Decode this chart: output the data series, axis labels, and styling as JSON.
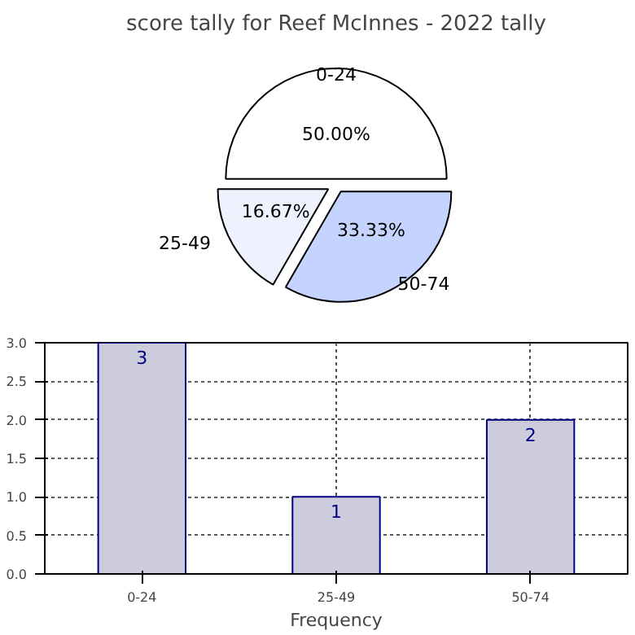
{
  "chart_data": [
    {
      "type": "pie",
      "title": "score tally for Reef McInnes - 2022 tally",
      "categories": [
        "0-24",
        "25-49",
        "50-74"
      ],
      "values": [
        50,
        16.67,
        33.33
      ],
      "value_labels": [
        "50.00%",
        "16.67%",
        "33.33%"
      ],
      "colors": [
        "#ffffff",
        "#eef2ff",
        "#c4d4ff"
      ]
    },
    {
      "type": "bar",
      "categories": [
        "0-24",
        "25-49",
        "50-74"
      ],
      "values": [
        3,
        1,
        2
      ],
      "color": "#ccccdd",
      "xlabel": "Frequency",
      "ylim": [
        0,
        3
      ],
      "yticks": [
        {
          "value": 0,
          "label": "0.0"
        },
        {
          "value": 0.5,
          "label": "0.5"
        },
        {
          "value": 1,
          "label": "1.0"
        },
        {
          "value": 1.5,
          "label": "1.5"
        },
        {
          "value": 2,
          "label": "2.0"
        },
        {
          "value": 2.5,
          "label": "2.5"
        },
        {
          "value": 3,
          "label": "3.0"
        }
      ],
      "grid": true,
      "data_labels": true
    }
  ]
}
